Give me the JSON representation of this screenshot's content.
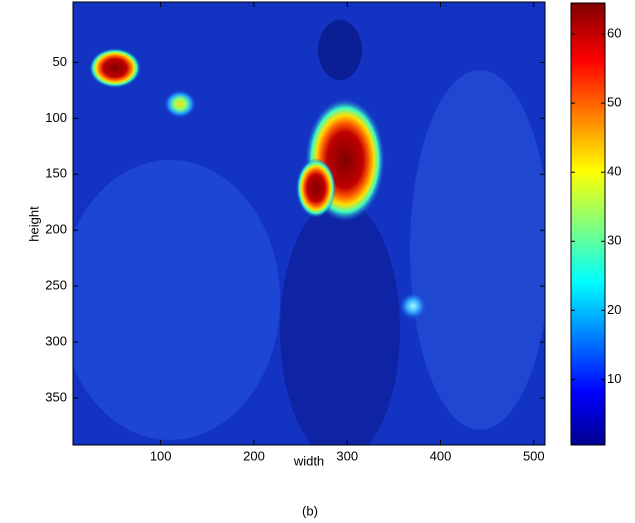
{
  "chart_data": {
    "type": "heatmap",
    "x_label": "width",
    "y_label": "height",
    "caption": "(b)",
    "xlim": [
      6,
      512
    ],
    "xticks": [
      100,
      200,
      300,
      400,
      500
    ],
    "ylim": [
      -4,
      392
    ],
    "yticks": [
      50,
      100,
      150,
      200,
      250,
      300,
      350
    ],
    "clim": [
      0.5,
      64.5
    ],
    "cticks": [
      10,
      20,
      30,
      40,
      50,
      60
    ]
  }
}
